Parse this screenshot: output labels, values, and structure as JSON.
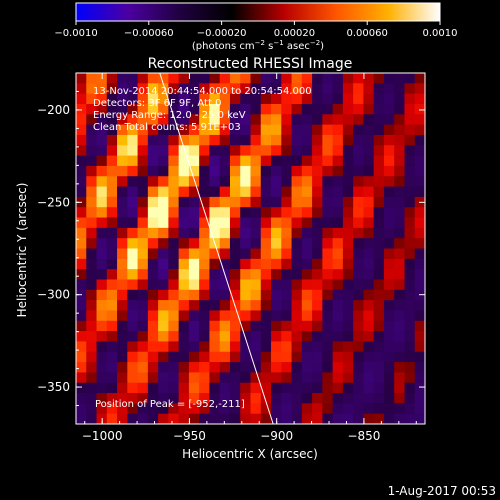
{
  "chart_data": {
    "type": "heatmap",
    "title": "Reconstructed RHESSI Image",
    "xlabel": "Heliocentric X (arcsec)",
    "ylabel": "Heliocentric Y (arcsec)",
    "xlim": [
      -1015,
      -815
    ],
    "ylim": [
      -370,
      -180
    ],
    "xticks": [
      -1000,
      -950,
      -900,
      -850
    ],
    "yticks": [
      -200,
      -250,
      -300,
      -350
    ],
    "xtick_labels": [
      "−1000",
      "−950",
      "−900",
      "−850"
    ],
    "ytick_labels": [
      "−200",
      "−250",
      "−300",
      "−350"
    ],
    "colorbar": {
      "ticks": [
        -0.001,
        -0.0006,
        -0.0002,
        0.0002,
        0.0006,
        0.001
      ],
      "tick_labels": [
        "−0.0010",
        "−0.00060",
        "−0.00020",
        "0.00020",
        "0.00060",
        "0.0010"
      ],
      "range": [
        -0.001,
        0.001
      ],
      "colors": [
        "#0000ff",
        "#4b00a0",
        "#200040",
        "#000000",
        "#b80000",
        "#ff5500",
        "#ffb000",
        "#ffffff"
      ]
    },
    "annotations": [
      "13-Nov-2014 20:44:54.000 to 20:54:54.000",
      "Detectors: 3F 6F 9F, Att 0",
      "Energy Range: 12.0 - 25.0 keV",
      "Clean    Total counts: 5.91E+03"
    ],
    "peak_label": "Position of Peak = [-952,-211]",
    "peak": [
      -952,
      -211
    ],
    "limb_line": {
      "x": [
        -967,
        -902
      ],
      "y": [
        -180,
        -370
      ]
    }
  },
  "footer": {
    "timestamp": "1-Aug-2017 00:53"
  }
}
